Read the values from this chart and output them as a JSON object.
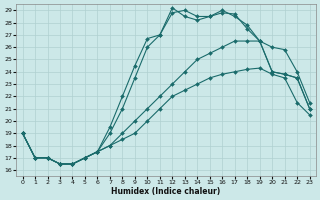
{
  "xlabel": "Humidex (Indice chaleur)",
  "bg_color": "#cce8e8",
  "line_color": "#1a6b6b",
  "grid_color": "#b0d0d0",
  "xlim": [
    -0.5,
    23.5
  ],
  "ylim": [
    15.5,
    29.5
  ],
  "xticks": [
    0,
    1,
    2,
    3,
    4,
    5,
    6,
    7,
    8,
    9,
    10,
    11,
    12,
    13,
    14,
    15,
    16,
    17,
    18,
    19,
    20,
    21,
    22,
    23
  ],
  "yticks": [
    16,
    17,
    18,
    19,
    20,
    21,
    22,
    23,
    24,
    25,
    26,
    27,
    28,
    29
  ],
  "lines": [
    {
      "x": [
        0,
        1,
        2,
        3,
        4,
        5,
        6,
        7,
        8,
        9,
        10,
        11,
        12,
        13,
        14,
        15,
        16,
        17,
        18,
        19,
        20,
        21,
        22,
        23
      ],
      "y": [
        19,
        17,
        17,
        16.5,
        16.5,
        17,
        17.5,
        18,
        18.5,
        19,
        20,
        21,
        22,
        22.5,
        23,
        23.5,
        23.8,
        24,
        24.2,
        24.3,
        23.8,
        23.5,
        21.5,
        20.5
      ]
    },
    {
      "x": [
        0,
        1,
        2,
        3,
        4,
        5,
        6,
        7,
        8,
        9,
        10,
        11,
        12,
        13,
        14,
        15,
        16,
        17,
        18,
        19,
        20,
        21,
        22,
        23
      ],
      "y": [
        19,
        17,
        17,
        16.5,
        16.5,
        17,
        17.5,
        18,
        19,
        20,
        21,
        22,
        23,
        24,
        25,
        25.5,
        26,
        26.5,
        26.5,
        26.5,
        26,
        25.8,
        24,
        21.5
      ]
    },
    {
      "x": [
        0,
        1,
        2,
        3,
        4,
        5,
        6,
        7,
        8,
        9,
        10,
        11,
        12,
        13,
        14,
        15,
        16,
        17,
        18,
        19,
        20,
        21,
        22,
        23
      ],
      "y": [
        19,
        17,
        17,
        16.5,
        16.5,
        17,
        17.5,
        19,
        21,
        23.5,
        26,
        27,
        28.8,
        29,
        28.5,
        28.5,
        29,
        28.5,
        27.8,
        26.5,
        24,
        23.8,
        23.5,
        21
      ]
    },
    {
      "x": [
        0,
        1,
        2,
        3,
        4,
        5,
        6,
        7,
        8,
        9,
        10,
        11,
        12,
        13,
        14,
        15,
        16,
        17,
        18,
        19,
        20,
        21,
        22,
        23
      ],
      "y": [
        19,
        17,
        17,
        16.5,
        16.5,
        17,
        17.5,
        19.5,
        22,
        24.5,
        26.7,
        27,
        29.2,
        28.5,
        28.2,
        28.5,
        28.8,
        28.7,
        27.5,
        26.5,
        24,
        23.8,
        23.5,
        21
      ]
    }
  ]
}
